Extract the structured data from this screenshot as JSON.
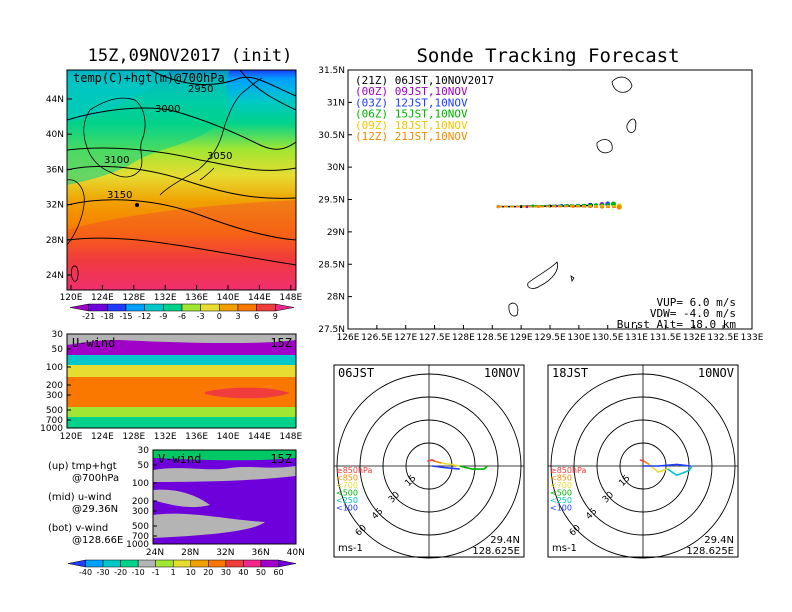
{
  "left_title": "15Z,09NOV2017 (init)",
  "right_title": "Sonde Tracking Forecast",
  "map_panel": {
    "label": "temp(C)+hgt(m)@700hPa",
    "contours": [
      "2950",
      "3000",
      "3050",
      "3100",
      "3150"
    ],
    "lat_ticks": [
      "44N",
      "40N",
      "36N",
      "32N",
      "28N",
      "24N"
    ],
    "lon_ticks": [
      "120E",
      "124E",
      "128E",
      "132E",
      "136E",
      "140E",
      "144E",
      "148E"
    ],
    "colorbar_ticks": [
      "-21",
      "-18",
      "-15",
      "-12",
      "-9",
      "-6",
      "-3",
      "0",
      "3",
      "6",
      "9"
    ],
    "colorbar_colors": [
      "#a000c8",
      "#6e00dc",
      "#1e3cff",
      "#00a0ff",
      "#00c8c8",
      "#00d28c",
      "#a0e632",
      "#e6dc32",
      "#f0a000",
      "#fa7800",
      "#f03c3c",
      "#f0288c"
    ]
  },
  "u_panel": {
    "label": "U-wind",
    "time": "15Z",
    "p_ticks": [
      "30",
      "50",
      "100",
      "200",
      "300",
      "500",
      "700",
      "1000"
    ],
    "lon_ticks": [
      "120E",
      "124E",
      "128E",
      "132E",
      "136E",
      "140E",
      "144E",
      "148E"
    ]
  },
  "v_panel": {
    "label": "V-wind",
    "time": "15Z",
    "p_ticks": [
      "30",
      "50",
      "100",
      "200",
      "300",
      "500",
      "700",
      "1000"
    ],
    "lat_ticks": [
      "24N",
      "28N",
      "32N",
      "36N",
      "40N"
    ]
  },
  "side_notes": [
    {
      "a": "(up) tmp+hgt",
      "b": "@700hPa"
    },
    {
      "a": "(mid) u-wind",
      "b": "@29.36N"
    },
    {
      "a": "(bot) v-wind",
      "b": "@128.66E"
    }
  ],
  "wind_colorbar": {
    "ticks": [
      "-40",
      "-30",
      "-20",
      "-10",
      "-1",
      "1",
      "10",
      "20",
      "30",
      "40",
      "50",
      "60"
    ],
    "colors": [
      "#1e3cff",
      "#00a0ff",
      "#00c8c8",
      "#00d28c",
      "#b4b4b4",
      "#a0e632",
      "#e6dc32",
      "#f0a000",
      "#fa7800",
      "#f03c3c",
      "#f0288c",
      "#a000c8",
      "#6e00dc"
    ]
  },
  "track_panel": {
    "legend": [
      {
        "text": "(21Z) 06JST,10NOV2017",
        "color": "#000000"
      },
      {
        "text": "(00Z) 09JST,10NOV",
        "color": "#a000c8"
      },
      {
        "text": "(03Z) 12JST,10NOV",
        "color": "#1e3cff"
      },
      {
        "text": "(06Z) 15JST,10NOV",
        "color": "#00b400"
      },
      {
        "text": "(09Z) 18JST,10NOV",
        "color": "#f0c800"
      },
      {
        "text": "(12Z) 21JST,10NOV",
        "color": "#f08c00"
      }
    ],
    "lat_ticks": [
      "31.5N",
      "31N",
      "30.5N",
      "30N",
      "29.5N",
      "29N",
      "28.5N",
      "28N",
      "27.5N"
    ],
    "lon_ticks": [
      "126E",
      "126.5E",
      "127E",
      "127.5E",
      "128E",
      "128.5E",
      "129E",
      "129.5E",
      "130E",
      "130.5E",
      "131E",
      "131.5E",
      "132E",
      "132.5E",
      "133E"
    ],
    "params": [
      "VUP= 6.0 m/s",
      "VDW= -4.0 m/s",
      "Burst Alt= 18.0 km"
    ]
  },
  "chart_data": [
    {
      "type": "line",
      "title": "Sonde Tracking Forecast",
      "xlim": [
        126,
        133
      ],
      "ylim": [
        27.5,
        31.5
      ],
      "series": [
        {
          "name": "(21Z) 06JST,10NOV2017",
          "color": "#000000",
          "x": [
            128.6,
            129.0,
            129.5,
            130.0,
            130.2
          ],
          "y": [
            29.39,
            29.39,
            29.4,
            29.4,
            29.41
          ]
        },
        {
          "name": "(00Z) 09JST,10NOV",
          "color": "#a000c8",
          "x": [
            128.6,
            129.1,
            129.6,
            130.1,
            130.4
          ],
          "y": [
            29.39,
            29.39,
            29.4,
            29.41,
            29.42
          ]
        },
        {
          "name": "(03Z) 12JST,10NOV",
          "color": "#1e3cff",
          "x": [
            128.6,
            129.2,
            129.7,
            130.2,
            130.5
          ],
          "y": [
            29.39,
            29.4,
            29.41,
            29.42,
            29.43
          ]
        },
        {
          "name": "(06Z) 15JST,10NOV",
          "color": "#00b400",
          "x": [
            128.6,
            129.2,
            129.8,
            130.3,
            130.6
          ],
          "y": [
            29.39,
            29.4,
            29.41,
            29.42,
            29.43
          ]
        },
        {
          "name": "(09Z) 18JST,10NOV",
          "color": "#f0c800",
          "x": [
            128.6,
            129.3,
            129.9,
            130.4,
            130.7
          ],
          "y": [
            29.39,
            29.39,
            29.4,
            29.4,
            29.4
          ]
        },
        {
          "name": "(12Z) 21JST,10NOV",
          "color": "#f08c00",
          "x": [
            128.6,
            129.3,
            129.9,
            130.4,
            130.7
          ],
          "y": [
            29.39,
            29.39,
            29.39,
            29.38,
            29.38
          ]
        }
      ]
    }
  ],
  "hodographs": [
    {
      "time": "06JST",
      "date": "10NOV",
      "lat": "29.4N",
      "lon": "128.625E",
      "unit": "ms-1",
      "rings": [
        "15",
        "30",
        "45",
        "60"
      ],
      "legend": [
        {
          "text": "≥850hPa",
          "color": "#f03c3c"
        },
        {
          "text": "<850",
          "color": "#f08c00"
        },
        {
          "text": "<700",
          "color": "#e6dc32"
        },
        {
          "text": "<500",
          "color": "#00b400"
        },
        {
          "text": "<250",
          "color": "#00c8c8"
        },
        {
          "text": "<100",
          "color": "#1e3cff"
        }
      ],
      "segments": [
        {
          "color": "#f03c3c",
          "pts": [
            [
              -1,
              3
            ],
            [
              2,
              4
            ],
            [
              4,
              3
            ]
          ]
        },
        {
          "color": "#f08c00",
          "pts": [
            [
              4,
              3
            ],
            [
              8,
              2
            ]
          ]
        },
        {
          "color": "#e6dc32",
          "pts": [
            [
              8,
              2
            ],
            [
              14,
              1
            ],
            [
              20,
              0
            ]
          ]
        },
        {
          "color": "#00b400",
          "pts": [
            [
              20,
              0
            ],
            [
              28,
              -2
            ],
            [
              36,
              -2
            ],
            [
              38,
              0
            ]
          ]
        },
        {
          "color": "#1e3cff",
          "pts": [
            [
              2,
              0
            ],
            [
              10,
              -1
            ],
            [
              20,
              -2
            ]
          ]
        }
      ]
    },
    {
      "time": "18JST",
      "date": "10NOV",
      "lat": "29.4N",
      "lon": "128.625E",
      "unit": "ms-1",
      "rings": [
        "15",
        "30",
        "45",
        "60"
      ],
      "legend": [
        {
          "text": "≥850hPa",
          "color": "#f03c3c"
        },
        {
          "text": "<850",
          "color": "#f08c00"
        },
        {
          "text": "<700",
          "color": "#e6dc32"
        },
        {
          "text": "<500",
          "color": "#00b400"
        },
        {
          "text": "<250",
          "color": "#00c8c8"
        },
        {
          "text": "<100",
          "color": "#1e3cff"
        }
      ],
      "segments": [
        {
          "color": "#f03c3c",
          "pts": [
            [
              -2,
              4
            ],
            [
              1,
              3
            ]
          ]
        },
        {
          "color": "#f08c00",
          "pts": [
            [
              1,
              3
            ],
            [
              4,
              1
            ]
          ]
        },
        {
          "color": "#e6dc32",
          "pts": [
            [
              4,
              1
            ],
            [
              10,
              -4
            ],
            [
              16,
              -2
            ]
          ]
        },
        {
          "color": "#00c8c8",
          "pts": [
            [
              16,
              -2
            ],
            [
              22,
              -6
            ],
            [
              30,
              -3
            ],
            [
              32,
              0
            ]
          ]
        },
        {
          "color": "#1e3cff",
          "pts": [
            [
              0,
              0
            ],
            [
              10,
              0
            ],
            [
              22,
              1
            ],
            [
              31,
              0
            ]
          ]
        }
      ]
    }
  ]
}
